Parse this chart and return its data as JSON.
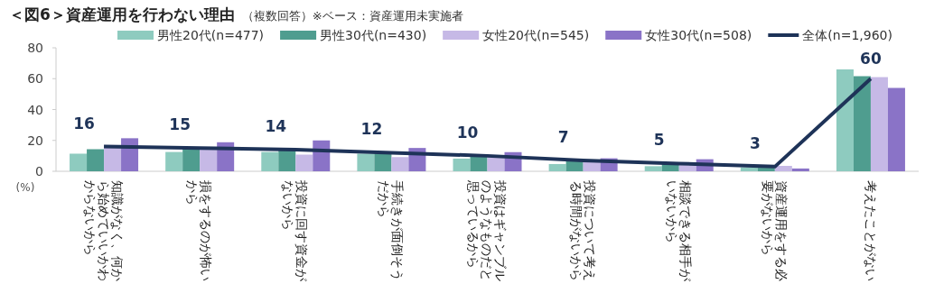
{
  "chart_data": {
    "type": "bar",
    "title": "＜図6＞資産運用を行わない理由",
    "subtitle": "（複数回答）※ベース：資産運用未実施者",
    "ylabel": "(%)",
    "categories": [
      "知識がなく、何から始めていいかわからないから",
      "損をするのが怖いから",
      "投資に回す資金がないから",
      "手続きが面倒そうだから",
      "投資はギャンブルのようなものだと思っているから",
      "投資について考える時間がないから",
      "相談できる相手がいないから",
      "資産運用をする必要がないから",
      "考えたことがない"
    ],
    "series": [
      {
        "name": "男性20代(n=477)",
        "color": "#8ecbbf",
        "values": [
          11.4,
          12.5,
          12.5,
          11.4,
          8.2,
          4.7,
          3.3,
          2.5,
          66
        ]
      },
      {
        "name": "男性30代(n=430)",
        "color": "#4f9d8f",
        "values": [
          14.3,
          15,
          14.5,
          11.5,
          10.2,
          7.4,
          4.9,
          2.3,
          61.6
        ]
      },
      {
        "name": "女性20代(n=545)",
        "color": "#c6b9e6",
        "values": [
          17,
          15,
          10.8,
          9.2,
          9.4,
          5.9,
          3.9,
          3.5,
          61
        ]
      },
      {
        "name": "女性30代(n=508)",
        "color": "#8a73c7",
        "values": [
          21.4,
          18.8,
          20,
          15.1,
          12.4,
          8.4,
          7.8,
          1.8,
          54
        ]
      },
      {
        "name": "全体(n=1,960)",
        "type": "line",
        "color": "#1e3358",
        "values": [
          16,
          15,
          14,
          12,
          10,
          7,
          5,
          3,
          60
        ],
        "value_labels": [
          "16",
          "15",
          "14",
          "12",
          "10",
          "7",
          "5",
          "3",
          "60"
        ]
      }
    ],
    "ylim": [
      0,
      80
    ],
    "yticks": [
      0,
      20,
      40,
      60,
      80
    ],
    "grid": false,
    "legend": "top",
    "marker": "none"
  }
}
